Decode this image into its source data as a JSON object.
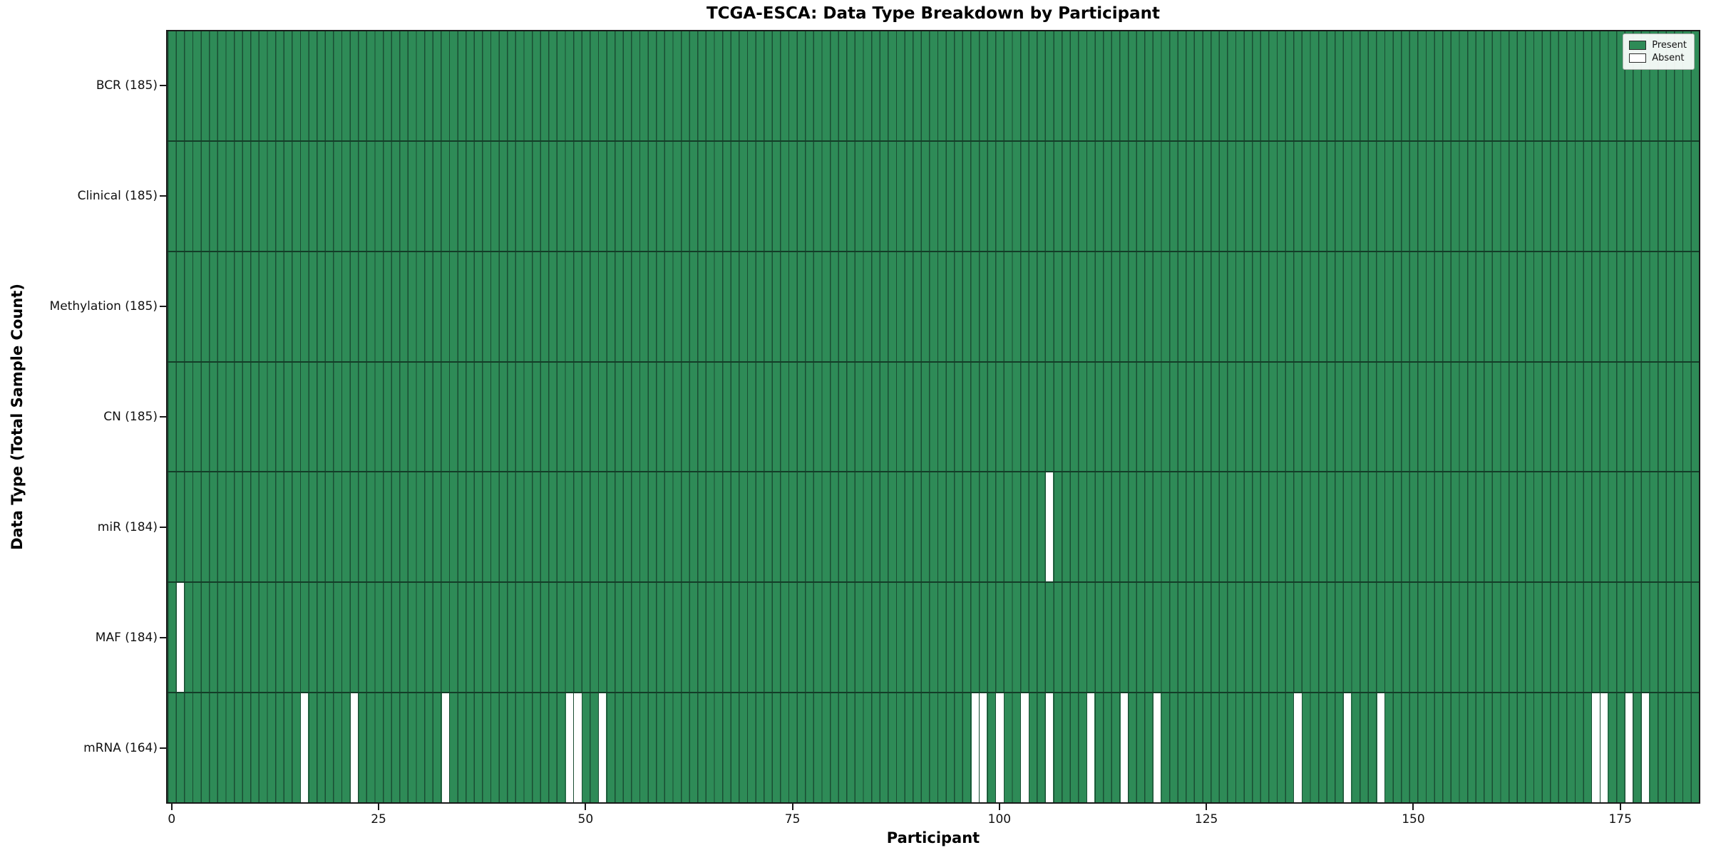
{
  "title": "TCGA-ESCA: Data Type Breakdown by Participant",
  "xlabel": "Participant",
  "ylabel": "Data Type (Total Sample Count)",
  "legend": {
    "present_label": "Present",
    "absent_label": "Absent"
  },
  "colors": {
    "present": "#2e8b57",
    "edge": "#1a4d33",
    "absent": "#ffffff",
    "separator": "#143d28",
    "spine": "#1a1a1a"
  },
  "chart_data": {
    "type": "heatmap",
    "title": "TCGA-ESCA: Data Type Breakdown by Participant",
    "xlabel": "Participant",
    "ylabel": "Data Type (Total Sample Count)",
    "legend": [
      "Present",
      "Absent"
    ],
    "legend_position": "upper right",
    "grid": false,
    "n_participants": 185,
    "x_ticks": [
      0,
      25,
      50,
      75,
      100,
      125,
      150,
      175
    ],
    "x_range": [
      0,
      184
    ],
    "rows": [
      {
        "label": "BCR (185)",
        "count": 185,
        "absent_participants": []
      },
      {
        "label": "Clinical (185)",
        "count": 185,
        "absent_participants": []
      },
      {
        "label": "Methylation (185)",
        "count": 185,
        "absent_participants": []
      },
      {
        "label": "CN (185)",
        "count": 185,
        "absent_participants": []
      },
      {
        "label": "miR (184)",
        "count": 184,
        "absent_participants": [
          106
        ]
      },
      {
        "label": "MAF (184)",
        "count": 184,
        "absent_participants": [
          1
        ]
      },
      {
        "label": "mRNA (164)",
        "count": 164,
        "absent_participants": [
          16,
          22,
          33,
          48,
          49,
          52,
          97,
          98,
          100,
          103,
          106,
          111,
          115,
          119,
          136,
          142,
          146,
          172,
          173,
          176,
          178
        ]
      }
    ]
  }
}
